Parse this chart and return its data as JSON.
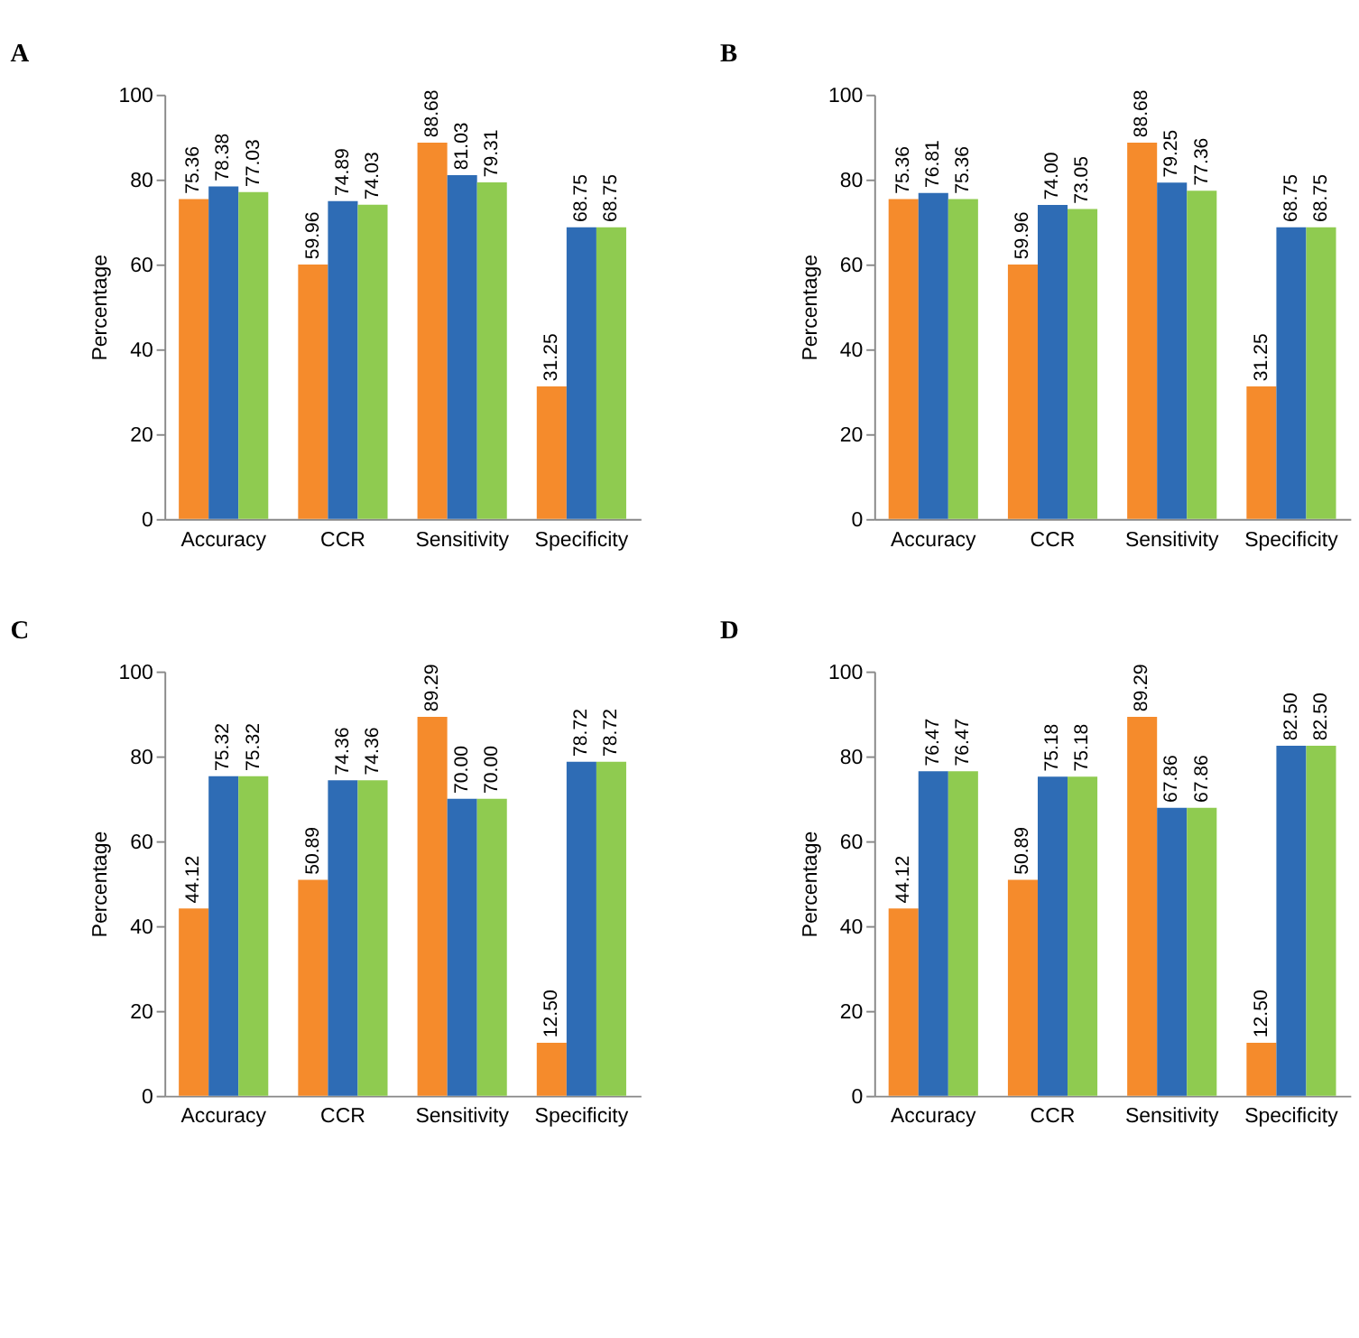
{
  "chart_data": [
    {
      "type": "bar",
      "title": "A",
      "ylabel": "Percentage",
      "categories": [
        "Accuracy",
        "CCR",
        "Sensitivity",
        "Specificity"
      ],
      "ylim": [
        0,
        100
      ],
      "yticks": [
        0,
        20,
        40,
        60,
        80,
        100
      ],
      "series": [
        {
          "color": "#f58b2c",
          "values": [
            75.36,
            59.96,
            88.68,
            31.25
          ],
          "value_labels": [
            "75.36",
            "59.96",
            "88.68",
            "31.25"
          ]
        },
        {
          "color": "#2e6cb5",
          "values": [
            78.38,
            74.89,
            81.03,
            68.75
          ],
          "value_labels": [
            "78.38",
            "74.89",
            "81.03",
            "68.75"
          ]
        },
        {
          "color": "#8fcb50",
          "values": [
            77.03,
            74.03,
            79.31,
            68.75
          ],
          "value_labels": [
            "77.03",
            "74.03",
            "79.31",
            "68.75"
          ]
        }
      ]
    },
    {
      "type": "bar",
      "title": "B",
      "ylabel": "Percentage",
      "categories": [
        "Accuracy",
        "CCR",
        "Sensitivity",
        "Specificity"
      ],
      "ylim": [
        0,
        100
      ],
      "yticks": [
        0,
        20,
        40,
        60,
        80,
        100
      ],
      "series": [
        {
          "color": "#f58b2c",
          "values": [
            75.36,
            59.96,
            88.68,
            31.25
          ],
          "value_labels": [
            "75.36",
            "59.96",
            "88.68",
            "31.25"
          ]
        },
        {
          "color": "#2e6cb5",
          "values": [
            76.81,
            74.0,
            79.25,
            68.75
          ],
          "value_labels": [
            "76.81",
            "74.00",
            "79.25",
            "68.75"
          ]
        },
        {
          "color": "#8fcb50",
          "values": [
            75.36,
            73.05,
            77.36,
            68.75
          ],
          "value_labels": [
            "75.36",
            "73.05",
            "77.36",
            "68.75"
          ]
        }
      ]
    },
    {
      "type": "bar",
      "title": "C",
      "ylabel": "Percentage",
      "categories": [
        "Accuracy",
        "CCR",
        "Sensitivity",
        "Specificity"
      ],
      "ylim": [
        0,
        100
      ],
      "yticks": [
        0,
        20,
        40,
        60,
        80,
        100
      ],
      "series": [
        {
          "color": "#f58b2c",
          "values": [
            44.12,
            50.89,
            89.29,
            12.5
          ],
          "value_labels": [
            "44.12",
            "50.89",
            "89.29",
            "12.50"
          ]
        },
        {
          "color": "#2e6cb5",
          "values": [
            75.32,
            74.36,
            70.0,
            78.72
          ],
          "value_labels": [
            "75.32",
            "74.36",
            "70.00",
            "78.72"
          ]
        },
        {
          "color": "#8fcb50",
          "values": [
            75.32,
            74.36,
            70.0,
            78.72
          ],
          "value_labels": [
            "75.32",
            "74.36",
            "70.00",
            "78.72"
          ]
        }
      ]
    },
    {
      "type": "bar",
      "title": "D",
      "ylabel": "Percentage",
      "categories": [
        "Accuracy",
        "CCR",
        "Sensitivity",
        "Specificity"
      ],
      "ylim": [
        0,
        100
      ],
      "yticks": [
        0,
        20,
        40,
        60,
        80,
        100
      ],
      "series": [
        {
          "color": "#f58b2c",
          "values": [
            44.12,
            50.89,
            89.29,
            12.5
          ],
          "value_labels": [
            "44.12",
            "50.89",
            "89.29",
            "12.50"
          ]
        },
        {
          "color": "#2e6cb5",
          "values": [
            76.47,
            75.18,
            67.86,
            82.5
          ],
          "value_labels": [
            "76.47",
            "75.18",
            "67.86",
            "82.50"
          ]
        },
        {
          "color": "#8fcb50",
          "values": [
            76.47,
            75.18,
            67.86,
            82.5
          ],
          "value_labels": [
            "76.47",
            "75.18",
            "67.86",
            "82.50"
          ]
        }
      ]
    }
  ]
}
